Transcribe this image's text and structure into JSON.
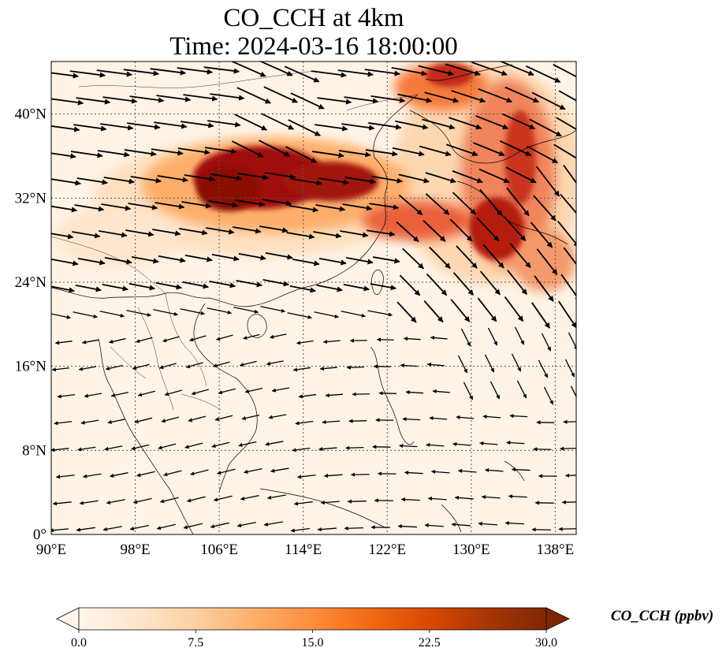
{
  "title": {
    "line1": "CO_CCH at 4km",
    "line2": "Time: 2024-03-16 18:00:00"
  },
  "map": {
    "lon_range": [
      90,
      140
    ],
    "lat_range": [
      0,
      45
    ],
    "lon_ticks": [
      90,
      98,
      106,
      114,
      122,
      130,
      138
    ],
    "lat_ticks": [
      0,
      8,
      16,
      24,
      32,
      40
    ],
    "lon_tick_labels": [
      "90°E",
      "98°E",
      "106°E",
      "114°E",
      "122°E",
      "130°E",
      "138°E"
    ],
    "lat_tick_labels": [
      "0°",
      "8°N",
      "16°N",
      "24°N",
      "32°N",
      "40°N"
    ],
    "gridlines": "dotted",
    "overlay": "wind vectors"
  },
  "colorbar": {
    "label": "CO_CCH (ppbv)",
    "min": 0.0,
    "max": 30.0,
    "ticks": [
      "0.0",
      "7.5",
      "15.0",
      "22.5",
      "30.0"
    ],
    "tick_values": [
      0,
      7.5,
      15,
      22.5,
      30
    ],
    "extend": "both",
    "colors": [
      "#fff5eb",
      "#fee6ce",
      "#fdd0a2",
      "#fdae6b",
      "#fd8d3c",
      "#f16913",
      "#d94801",
      "#a63603",
      "#7f2704"
    ]
  }
}
